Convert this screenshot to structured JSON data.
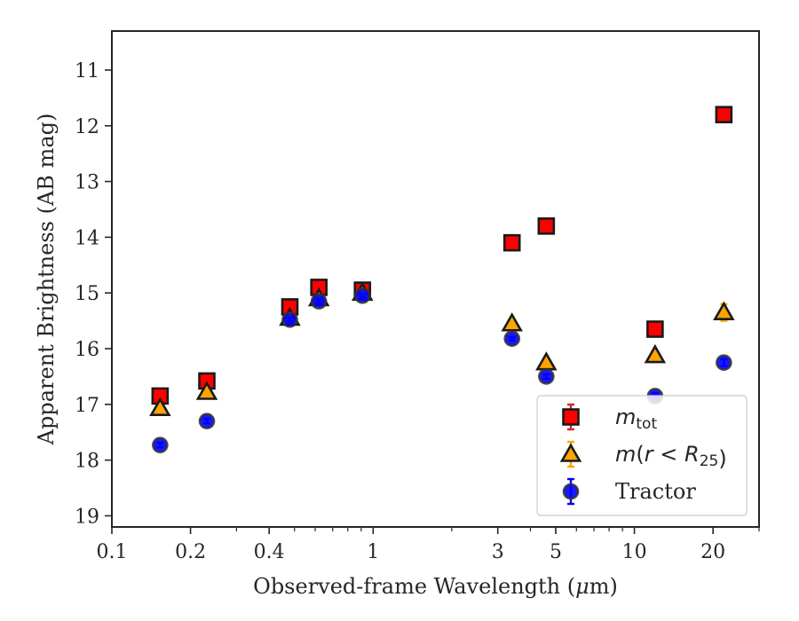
{
  "chart_data": {
    "type": "scatter",
    "xlabel": "Observed-frame Wavelength (μm)",
    "xlabel_parts": {
      "before": "Observed-frame Wavelength (",
      "mu": "μ",
      "after": "m)"
    },
    "ylabel": "Apparent Brightness (AB mag)",
    "x_scale": "log",
    "xlim": [
      0.1,
      30
    ],
    "ylim": [
      19.2,
      10.3
    ],
    "y_inverted": true,
    "x_ticks": [
      {
        "value": 0.1,
        "label": "0.1"
      },
      {
        "value": 0.2,
        "label": "0.2"
      },
      {
        "value": 0.4,
        "label": "0.4"
      },
      {
        "value": 1,
        "label": "1"
      },
      {
        "value": 3,
        "label": "3"
      },
      {
        "value": 5,
        "label": "5"
      },
      {
        "value": 10,
        "label": "10"
      },
      {
        "value": 20,
        "label": "20"
      }
    ],
    "x_minor_ticks": [
      0.3,
      0.5,
      0.6,
      0.7,
      0.8,
      0.9,
      2,
      4,
      6,
      7,
      8,
      9,
      30
    ],
    "y_ticks": [
      {
        "value": 11,
        "label": "11"
      },
      {
        "value": 12,
        "label": "12"
      },
      {
        "value": 13,
        "label": "13"
      },
      {
        "value": 14,
        "label": "14"
      },
      {
        "value": 15,
        "label": "15"
      },
      {
        "value": 16,
        "label": "16"
      },
      {
        "value": 17,
        "label": "17"
      },
      {
        "value": 18,
        "label": "18"
      },
      {
        "value": 19,
        "label": "19"
      }
    ],
    "grid": false,
    "legend_position": "bottom-right",
    "series": [
      {
        "name": "m_tot",
        "marker": "square",
        "color": "#ff0000",
        "edge_color": "#1a1a1a",
        "error_color": "#d62728",
        "x": [
          0.153,
          0.231,
          0.48,
          0.62,
          0.91,
          3.4,
          4.6,
          12,
          22
        ],
        "y": [
          16.85,
          16.58,
          15.25,
          14.9,
          14.95,
          14.1,
          13.8,
          15.65,
          11.8
        ],
        "yerr": [
          0.04,
          0.04,
          0.03,
          0.03,
          0.03,
          0.03,
          0.03,
          0.05,
          0.05
        ]
      },
      {
        "name": "m(r<R25)",
        "marker": "triangle",
        "color": "#ffa500",
        "edge_color": "#1a1a1a",
        "error_color": "#ffa500",
        "x": [
          0.153,
          0.231,
          0.48,
          0.62,
          0.91,
          3.4,
          4.6,
          12,
          22
        ],
        "y": [
          17.07,
          16.78,
          15.45,
          15.1,
          15.0,
          15.55,
          16.25,
          16.12,
          15.35
        ],
        "yerr": [
          0.04,
          0.04,
          0.03,
          0.03,
          0.03,
          0.04,
          0.05,
          0.08,
          0.15
        ]
      },
      {
        "name": "Tractor",
        "marker": "circle",
        "color": "#0000ff",
        "edge_color": "#333333",
        "error_color": "#0000ff",
        "x": [
          0.153,
          0.231,
          0.48,
          0.62,
          0.91,
          3.4,
          4.6,
          12,
          22
        ],
        "y": [
          17.73,
          17.3,
          15.48,
          15.15,
          15.05,
          15.82,
          16.5,
          16.85,
          16.25
        ],
        "yerr": [
          0.04,
          0.04,
          0.03,
          0.03,
          0.03,
          0.03,
          0.04,
          0.05,
          0.06
        ]
      }
    ],
    "legend": [
      {
        "marker": "square",
        "parts": [
          {
            "text": "m",
            "style": "math"
          },
          {
            "text": "tot",
            "style": "sub"
          }
        ]
      },
      {
        "marker": "triangle",
        "parts": [
          {
            "text": "m",
            "style": "math"
          },
          {
            "text": "(",
            "style": "math-plain"
          },
          {
            "text": "r",
            "style": "math"
          },
          {
            "text": " < ",
            "style": "math-plain"
          },
          {
            "text": "R",
            "style": "math"
          },
          {
            "text": "25",
            "style": "sub"
          },
          {
            "text": ")",
            "style": "math-plain"
          }
        ]
      },
      {
        "marker": "circle",
        "parts": [
          {
            "text": "Tractor",
            "style": "plain"
          }
        ]
      }
    ]
  }
}
